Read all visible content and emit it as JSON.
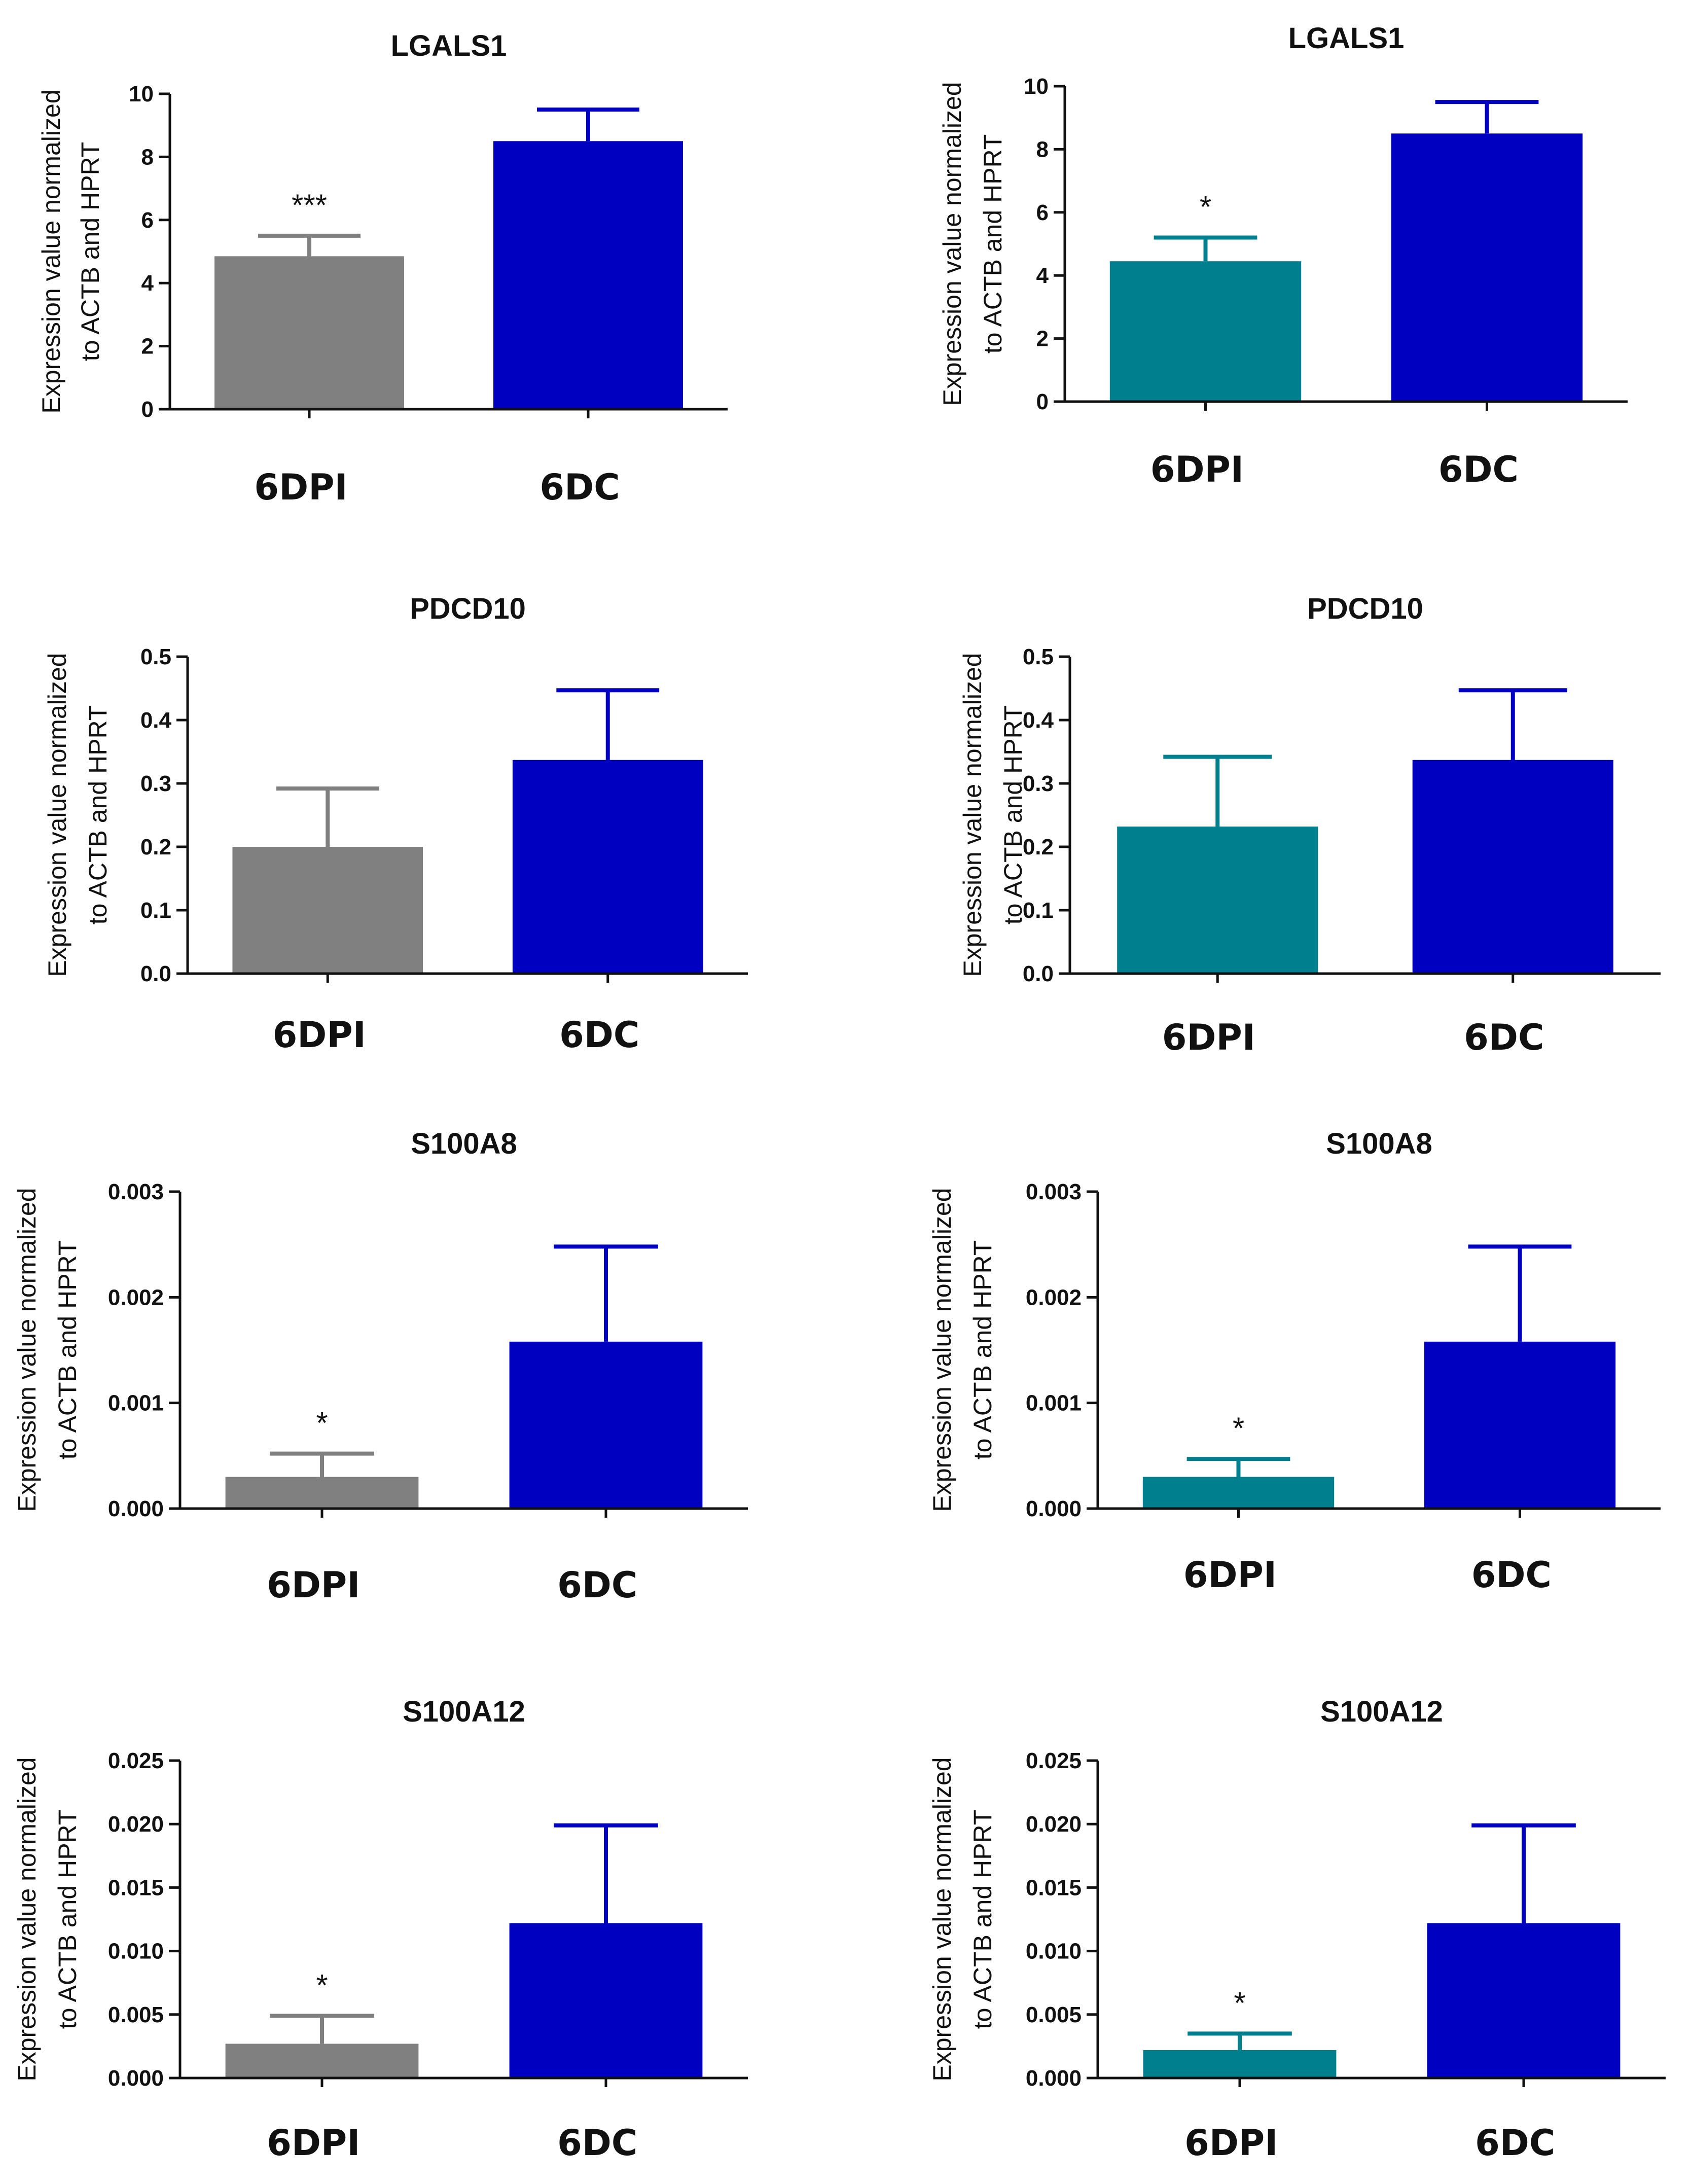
{
  "figure": {
    "ylabel_line1": "Expression value normalized",
    "ylabel_line2": "to ACTB and HPRT"
  },
  "chart_data": [
    {
      "type": "bar",
      "title": "LGALS1",
      "ylabel": "Expression value normalized to ACTB and HPRT",
      "categories": [
        "6DPI",
        "6DC"
      ],
      "values": [
        4.85,
        8.5
      ],
      "errors": [
        0.65,
        1.0
      ],
      "significance": [
        "***",
        ""
      ],
      "ylim": [
        0,
        10
      ],
      "yticks": [
        0,
        2,
        4,
        6,
        8,
        10
      ],
      "ytick_labels": [
        "0",
        "2",
        "4",
        "6",
        "8",
        "10"
      ],
      "colors": [
        "#808080",
        "#0000c0"
      ]
    },
    {
      "type": "bar",
      "title": "LGALS1",
      "ylabel": "Expression value normalized to ACTB and HPRT",
      "categories": [
        "6DPI",
        "6DC"
      ],
      "values": [
        4.45,
        8.5
      ],
      "errors": [
        0.75,
        1.0
      ],
      "significance": [
        "*",
        ""
      ],
      "ylim": [
        0,
        10
      ],
      "yticks": [
        0,
        2,
        4,
        6,
        8,
        10
      ],
      "ytick_labels": [
        "0",
        "2",
        "4",
        "6",
        "8",
        "10"
      ],
      "colors": [
        "#00808f",
        "#0000c0"
      ]
    },
    {
      "type": "bar",
      "title": "PDCD10",
      "ylabel": "Expression value normalized to ACTB and HPRT",
      "categories": [
        "6DPI",
        "6DC"
      ],
      "values": [
        0.2,
        0.337
      ],
      "errors": [
        0.092,
        0.11
      ],
      "significance": [
        "",
        ""
      ],
      "ylim": [
        0,
        0.5
      ],
      "yticks": [
        0,
        0.1,
        0.2,
        0.3,
        0.4,
        0.5
      ],
      "ytick_labels": [
        "0.0",
        "0.1",
        "0.2",
        "0.3",
        "0.4",
        "0.5"
      ],
      "colors": [
        "#808080",
        "#0000c0"
      ]
    },
    {
      "type": "bar",
      "title": "PDCD10",
      "ylabel": "Expression value normalized to ACTB and HPRT",
      "categories": [
        "6DPI",
        "6DC"
      ],
      "values": [
        0.232,
        0.337
      ],
      "errors": [
        0.11,
        0.11
      ],
      "significance": [
        "",
        ""
      ],
      "ylim": [
        0,
        0.5
      ],
      "yticks": [
        0,
        0.1,
        0.2,
        0.3,
        0.4,
        0.5
      ],
      "ytick_labels": [
        "0.0",
        "0.1",
        "0.2",
        "0.3",
        "0.4",
        "0.5"
      ],
      "colors": [
        "#00808f",
        "#0000c0"
      ]
    },
    {
      "type": "bar",
      "title": "S100A8",
      "ylabel": "Expression value normalized to ACTB and HPRT",
      "categories": [
        "6DPI",
        "6DC"
      ],
      "values": [
        0.0003,
        0.00158
      ],
      "errors": [
        0.00022,
        0.0009
      ],
      "significance": [
        "*",
        ""
      ],
      "ylim": [
        0,
        0.003
      ],
      "yticks": [
        0,
        0.001,
        0.002,
        0.003
      ],
      "ytick_labels": [
        "0.000",
        "0.001",
        "0.002",
        "0.003"
      ],
      "colors": [
        "#808080",
        "#0000c0"
      ]
    },
    {
      "type": "bar",
      "title": "S100A8",
      "ylabel": "Expression value normalized to ACTB and HPRT",
      "categories": [
        "6DPI",
        "6DC"
      ],
      "values": [
        0.0003,
        0.00158
      ],
      "errors": [
        0.00017,
        0.0009
      ],
      "significance": [
        "*",
        ""
      ],
      "ylim": [
        0,
        0.003
      ],
      "yticks": [
        0,
        0.001,
        0.002,
        0.003
      ],
      "ytick_labels": [
        "0.000",
        "0.001",
        "0.002",
        "0.003"
      ],
      "colors": [
        "#00808f",
        "#0000c0"
      ]
    },
    {
      "type": "bar",
      "title": "S100A12",
      "ylabel": "Expression value normalized to ACTB and HPRT",
      "categories": [
        "6DPI",
        "6DC"
      ],
      "values": [
        0.0027,
        0.0122
      ],
      "errors": [
        0.0022,
        0.0077
      ],
      "significance": [
        "*",
        ""
      ],
      "ylim": [
        0,
        0.025
      ],
      "yticks": [
        0,
        0.005,
        0.01,
        0.015,
        0.02,
        0.025
      ],
      "ytick_labels": [
        "0.000",
        "0.005",
        "0.010",
        "0.015",
        "0.020",
        "0.025"
      ],
      "colors": [
        "#808080",
        "#0000c0"
      ]
    },
    {
      "type": "bar",
      "title": "S100A12",
      "ylabel": "Expression value normalized to ACTB and HPRT",
      "categories": [
        "6DPI",
        "6DC"
      ],
      "values": [
        0.0022,
        0.0122
      ],
      "errors": [
        0.0013,
        0.0077
      ],
      "significance": [
        "*",
        ""
      ],
      "ylim": [
        0,
        0.025
      ],
      "yticks": [
        0,
        0.005,
        0.01,
        0.015,
        0.02,
        0.025
      ],
      "ytick_labels": [
        "0.000",
        "0.005",
        "0.010",
        "0.015",
        "0.020",
        "0.025"
      ],
      "colors": [
        "#00808f",
        "#0000c0"
      ]
    }
  ]
}
